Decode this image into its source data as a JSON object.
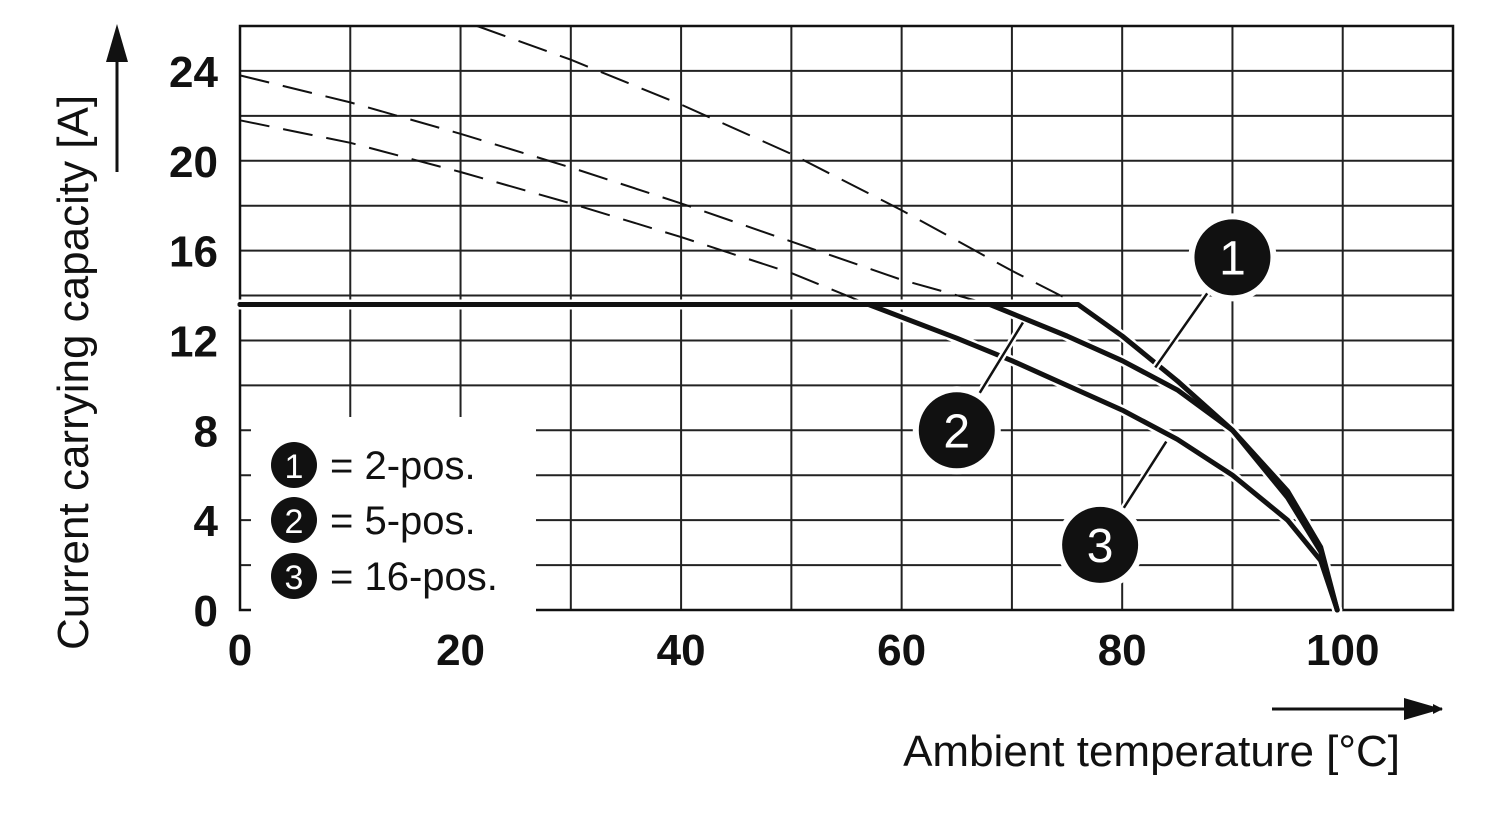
{
  "chart_data": {
    "type": "line",
    "xlabel": "Ambient temperature [°C]",
    "ylabel": "Current carrying capacity [A]",
    "xlim": [
      0,
      110
    ],
    "ylim": [
      0,
      26
    ],
    "x_ticks": [
      "0",
      "20",
      "40",
      "60",
      "80",
      "100"
    ],
    "y_ticks": [
      "0",
      "4",
      "8",
      "12",
      "16",
      "20",
      "24"
    ],
    "grid": true,
    "legend_position": "bottom-left",
    "legend": [
      {
        "marker": "1",
        "text": "= 2-pos."
      },
      {
        "marker": "2",
        "text": "= 5-pos."
      },
      {
        "marker": "3",
        "text": "= 16-pos."
      }
    ],
    "series": [
      {
        "marker": "1",
        "dashed_derating": {
          "x": [
            21.5,
            30,
            40,
            50,
            60,
            70,
            76
          ],
          "y": [
            26,
            24.5,
            22.5,
            20.3,
            17.8,
            15.1,
            13.6
          ]
        },
        "solid": {
          "x": [
            0,
            76,
            80,
            85,
            90,
            95,
            98,
            99.5
          ],
          "y": [
            13.6,
            13.6,
            12.2,
            10.2,
            8.0,
            5.0,
            2.6,
            0
          ]
        }
      },
      {
        "marker": "2",
        "dashed_derating": {
          "x": [
            0,
            10,
            20,
            30,
            40,
            50,
            60,
            68
          ],
          "y": [
            23.8,
            22.6,
            21.2,
            19.7,
            18.1,
            16.4,
            14.7,
            13.6
          ]
        },
        "solid": {
          "x": [
            0,
            68,
            75,
            80,
            85,
            90,
            95,
            98,
            99.5
          ],
          "y": [
            13.6,
            13.6,
            12.2,
            11.1,
            9.8,
            8.0,
            5.3,
            2.8,
            0
          ]
        }
      },
      {
        "marker": "3",
        "dashed_derating": {
          "x": [
            0,
            10,
            20,
            30,
            40,
            50,
            57
          ],
          "y": [
            21.8,
            20.8,
            19.5,
            18.1,
            16.6,
            15.0,
            13.6
          ]
        },
        "solid": {
          "x": [
            0,
            57,
            65,
            70,
            75,
            80,
            85,
            90,
            95,
            98,
            99.5
          ],
          "y": [
            13.6,
            13.6,
            12.1,
            11.1,
            10.0,
            8.9,
            7.6,
            6.0,
            4.0,
            2.2,
            0
          ]
        }
      }
    ],
    "callouts": [
      {
        "marker": "1",
        "at": {
          "x": 83,
          "y": 10.8
        },
        "label_at": {
          "x": 90,
          "y": 15.7
        }
      },
      {
        "marker": "2",
        "at": {
          "x": 71,
          "y": 12.8
        },
        "label_at": {
          "x": 65,
          "y": 8.0
        }
      },
      {
        "marker": "3",
        "at": {
          "x": 84,
          "y": 7.5
        },
        "label_at": {
          "x": 78,
          "y": 2.9
        }
      }
    ]
  }
}
